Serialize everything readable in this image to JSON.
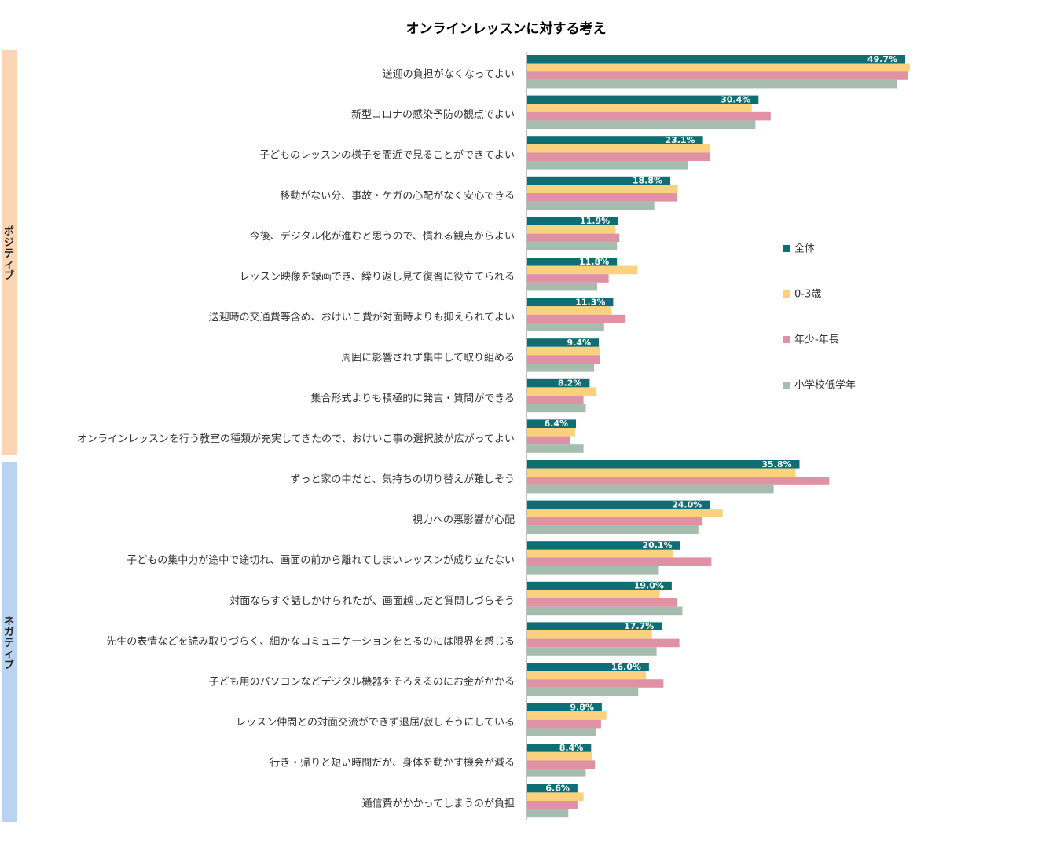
{
  "chart_data": {
    "type": "bar",
    "orientation": "horizontal",
    "title": "オンラインレッスンに対する考え",
    "value_unit": "%",
    "groups": [
      {
        "label": "ポジティブ",
        "color": "#fcd5b5",
        "categories_range": [
          0,
          9
        ]
      },
      {
        "label": "ネガティブ",
        "color": "#b8d4f0",
        "categories_range": [
          10,
          18
        ]
      }
    ],
    "categories": [
      "送迎の負担がなくなってよい",
      "新型コロナの感染予防の観点でよい",
      "子どものレッスンの様子を間近で見ることができてよい",
      "移動がない分、事故・ケガの心配がなく安心できる",
      "今後、デジタル化が進むと思うので、慣れる観点からよい",
      "レッスン映像を録画でき、繰り返し見て復習に役立てられる",
      "送迎時の交通費等含め、おけいこ費が対面時よりも抑えられてよい",
      "周囲に影響されず集中して取り組める",
      "集合形式よりも積極的に発言・質問ができる",
      "オンラインレッスンを行う教室の種類が充実してきたので、おけいこ事の選択肢が広がってよい",
      "ずっと家の中だと、気持ちの切り替えが難しそう",
      "視力への悪影響が心配",
      "子どもの集中力が途中で途切れ、画面の前から離れてしまいレッスンが成り立たない",
      "対面ならすぐ話しかけられたが、画面越しだと質問しづらそう",
      "先生の表情などを読み取りづらく、細かなコミュニケーションをとるのには限界を感じる",
      "子ども用のパソコンなどデジタル機器をそろえるのにお金がかかる",
      "レッスン仲間との対面交流ができず退屈/寂しそうにしている",
      "行き・帰りと短い時間だが、身体を動かす機会が減る",
      "通信費がかかってしまうのが負担"
    ],
    "series": [
      {
        "name": "全体",
        "color": "#0e6e73",
        "values": [
          49.7,
          30.4,
          23.1,
          18.8,
          11.9,
          11.8,
          11.3,
          9.4,
          8.2,
          6.4,
          35.8,
          24.0,
          20.1,
          19.0,
          17.7,
          16.0,
          9.8,
          8.4,
          6.6
        ],
        "labels": [
          "49.7%",
          "30.4%",
          "23.1%",
          "18.8%",
          "11.9%",
          "11.8%",
          "11.3%",
          "9.4%",
          "8.2%",
          "6.4%",
          "35.8%",
          "24.0%",
          "20.1%",
          "19.0%",
          "17.7%",
          "16.0%",
          "9.8%",
          "8.4%",
          "6.6%"
        ]
      },
      {
        "name": "0-3歳",
        "color": "#fad27e",
        "values": [
          50.3,
          29.5,
          24.0,
          19.8,
          11.6,
          14.5,
          11.0,
          9.5,
          9.1,
          6.3,
          35.3,
          25.7,
          19.2,
          17.4,
          16.4,
          15.6,
          10.4,
          8.5,
          7.4
        ]
      },
      {
        "name": "年少-年長",
        "color": "#e091a3",
        "values": [
          50.0,
          32.0,
          24.0,
          19.7,
          12.1,
          10.7,
          12.9,
          9.6,
          7.4,
          5.6,
          39.7,
          23.0,
          24.2,
          19.7,
          20.0,
          17.9,
          9.7,
          8.9,
          6.6
        ]
      },
      {
        "name": "小学校低学年",
        "color": "#a5bcaf",
        "values": [
          48.6,
          30.0,
          21.1,
          16.7,
          11.8,
          9.2,
          10.1,
          8.8,
          7.7,
          7.4,
          32.4,
          22.5,
          17.3,
          20.4,
          17.0,
          14.6,
          9.0,
          7.7,
          5.4
        ]
      }
    ],
    "legend_position": "right",
    "grid": false
  }
}
